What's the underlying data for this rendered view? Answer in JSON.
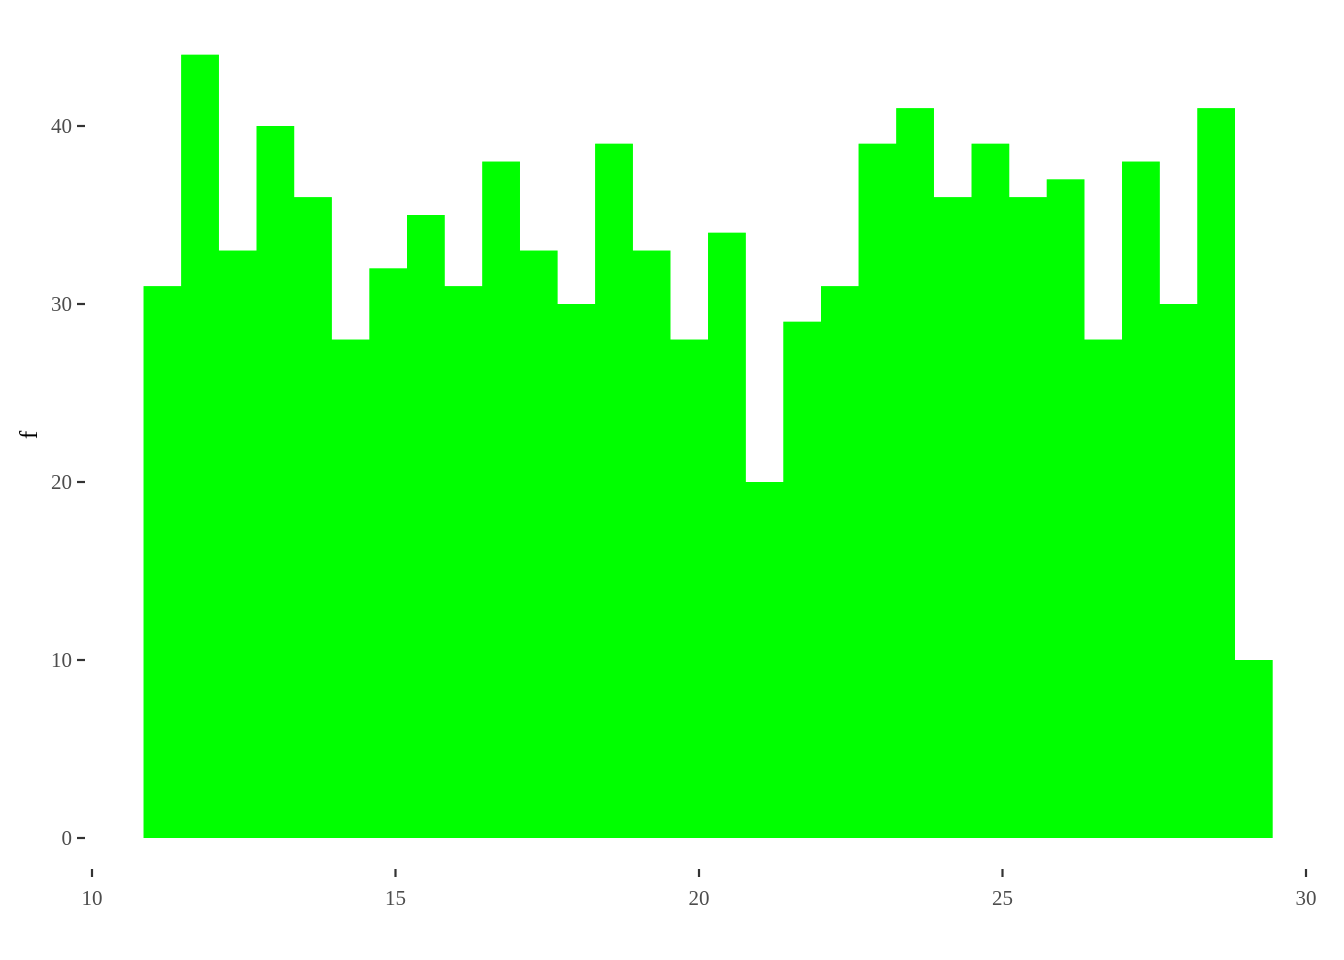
{
  "chart_data": {
    "type": "bar",
    "subtype": "histogram",
    "title": "",
    "xlabel": "",
    "ylabel": "f",
    "xlim": [
      10,
      30
    ],
    "ylim": [
      0,
      44
    ],
    "x_ticks": [
      10,
      15,
      20,
      25,
      30
    ],
    "y_ticks": [
      0,
      10,
      20,
      30,
      40
    ],
    "grid": false,
    "legend": "none",
    "bar_color": "#00FF00",
    "bins": [
      {
        "x0": 10.85,
        "x1": 11.47,
        "count": 31
      },
      {
        "x0": 11.47,
        "x1": 12.09,
        "count": 44
      },
      {
        "x0": 12.09,
        "x1": 12.71,
        "count": 33
      },
      {
        "x0": 12.71,
        "x1": 13.33,
        "count": 40
      },
      {
        "x0": 13.33,
        "x1": 13.95,
        "count": 36
      },
      {
        "x0": 13.95,
        "x1": 14.57,
        "count": 28
      },
      {
        "x0": 14.57,
        "x1": 15.19,
        "count": 32
      },
      {
        "x0": 15.19,
        "x1": 15.81,
        "count": 35
      },
      {
        "x0": 15.81,
        "x1": 16.43,
        "count": 31
      },
      {
        "x0": 16.43,
        "x1": 17.05,
        "count": 38
      },
      {
        "x0": 17.05,
        "x1": 17.67,
        "count": 33
      },
      {
        "x0": 17.67,
        "x1": 18.29,
        "count": 30
      },
      {
        "x0": 18.29,
        "x1": 18.91,
        "count": 39
      },
      {
        "x0": 18.91,
        "x1": 19.53,
        "count": 33
      },
      {
        "x0": 19.53,
        "x1": 20.15,
        "count": 28
      },
      {
        "x0": 20.15,
        "x1": 20.77,
        "count": 34
      },
      {
        "x0": 20.77,
        "x1": 21.39,
        "count": 20
      },
      {
        "x0": 21.39,
        "x1": 22.01,
        "count": 29
      },
      {
        "x0": 22.01,
        "x1": 22.63,
        "count": 31
      },
      {
        "x0": 22.63,
        "x1": 23.25,
        "count": 39
      },
      {
        "x0": 23.25,
        "x1": 23.87,
        "count": 41
      },
      {
        "x0": 23.87,
        "x1": 24.49,
        "count": 36
      },
      {
        "x0": 24.49,
        "x1": 25.11,
        "count": 39
      },
      {
        "x0": 25.11,
        "x1": 25.73,
        "count": 36
      },
      {
        "x0": 25.73,
        "x1": 26.35,
        "count": 37
      },
      {
        "x0": 26.35,
        "x1": 26.97,
        "count": 28
      },
      {
        "x0": 26.97,
        "x1": 27.59,
        "count": 38
      },
      {
        "x0": 27.59,
        "x1": 28.21,
        "count": 30
      },
      {
        "x0": 28.21,
        "x1": 28.83,
        "count": 41
      },
      {
        "x0": 28.83,
        "x1": 29.45,
        "count": 10
      }
    ]
  }
}
